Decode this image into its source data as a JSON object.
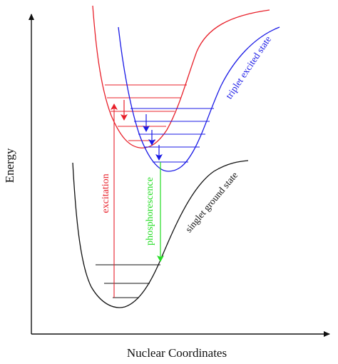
{
  "axes": {
    "y_label": "Energy",
    "x_label": "Nuclear Coordinates"
  },
  "labels": {
    "triplet": "triplet excited state",
    "singlet_ground": "singlet ground state",
    "excitation": "excitation",
    "phosphorescence": "phosphorescence"
  },
  "colors": {
    "singlet_excited": "#e8202a",
    "triplet": "#1a1ae6",
    "ground": "#111111",
    "excitation": "#e8202a",
    "phosphorescence": "#22dd22",
    "axis": "#111111"
  }
}
